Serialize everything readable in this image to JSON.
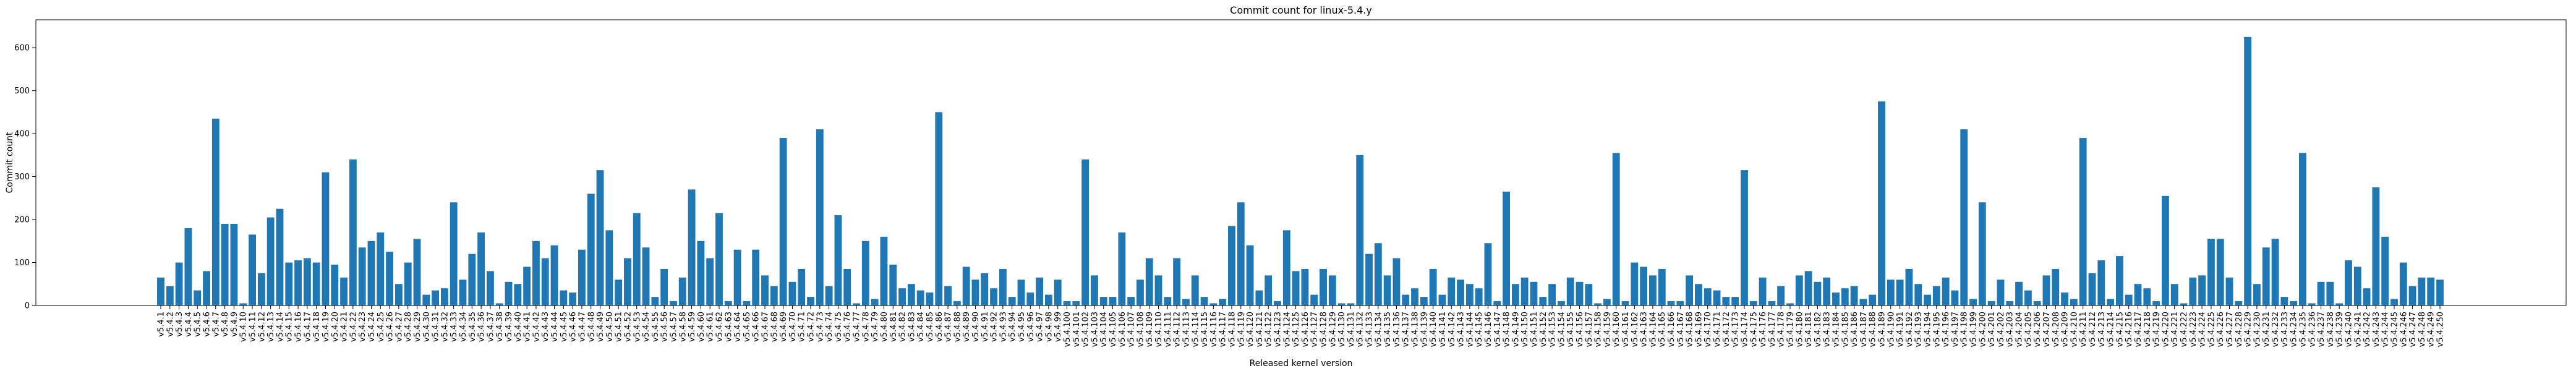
{
  "chart_data": {
    "type": "bar",
    "title": "Commit count for linux-5.4.y",
    "x_label": "Released kernel version",
    "y_label": "Commit count",
    "color": "#1f77b4",
    "categories": [
      "v5.4.1",
      "v5.4.2",
      "v5.4.3",
      "v5.4.4",
      "v5.4.5",
      "v5.4.6",
      "v5.4.7",
      "v5.4.8",
      "v5.4.9",
      "v5.4.10",
      "v5.4.11",
      "v5.4.12",
      "v5.4.13",
      "v5.4.14",
      "v5.4.15",
      "v5.4.16",
      "v5.4.17",
      "v5.4.18",
      "v5.4.19",
      "v5.4.20",
      "v5.4.21",
      "v5.4.22",
      "v5.4.23",
      "v5.4.24",
      "v5.4.25",
      "v5.4.26",
      "v5.4.27",
      "v5.4.28",
      "v5.4.29",
      "v5.4.30",
      "v5.4.31",
      "v5.4.32",
      "v5.4.33",
      "v5.4.34",
      "v5.4.35",
      "v5.4.36",
      "v5.4.37",
      "v5.4.38",
      "v5.4.39",
      "v5.4.40",
      "v5.4.41",
      "v5.4.42",
      "v5.4.43",
      "v5.4.44",
      "v5.4.45",
      "v5.4.46",
      "v5.4.47",
      "v5.4.48",
      "v5.4.49",
      "v5.4.50",
      "v5.4.51",
      "v5.4.52",
      "v5.4.53",
      "v5.4.54",
      "v5.4.55",
      "v5.4.56",
      "v5.4.57",
      "v5.4.58",
      "v5.4.59",
      "v5.4.60",
      "v5.4.61",
      "v5.4.62",
      "v5.4.63",
      "v5.4.64",
      "v5.4.65",
      "v5.4.66",
      "v5.4.67",
      "v5.4.68",
      "v5.4.69",
      "v5.4.70",
      "v5.4.71",
      "v5.4.72",
      "v5.4.73",
      "v5.4.74",
      "v5.4.75",
      "v5.4.76",
      "v5.4.77",
      "v5.4.78",
      "v5.4.79",
      "v5.4.80",
      "v5.4.81",
      "v5.4.82",
      "v5.4.83",
      "v5.4.84",
      "v5.4.85",
      "v5.4.86",
      "v5.4.87",
      "v5.4.88",
      "v5.4.89",
      "v5.4.90",
      "v5.4.91",
      "v5.4.92",
      "v5.4.93",
      "v5.4.94",
      "v5.4.95",
      "v5.4.96",
      "v5.4.97",
      "v5.4.98",
      "v5.4.99",
      "v5.4.100",
      "v5.4.101",
      "v5.4.102",
      "v5.4.103",
      "v5.4.104",
      "v5.4.105",
      "v5.4.106",
      "v5.4.107",
      "v5.4.108",
      "v5.4.109",
      "v5.4.110",
      "v5.4.111",
      "v5.4.112",
      "v5.4.113",
      "v5.4.114",
      "v5.4.115",
      "v5.4.116",
      "v5.4.117",
      "v5.4.118",
      "v5.4.119",
      "v5.4.120",
      "v5.4.121",
      "v5.4.122",
      "v5.4.123",
      "v5.4.124",
      "v5.4.125",
      "v5.4.126",
      "v5.4.127",
      "v5.4.128",
      "v5.4.129",
      "v5.4.130",
      "v5.4.131",
      "v5.4.132",
      "v5.4.133",
      "v5.4.134",
      "v5.4.135",
      "v5.4.136",
      "v5.4.137",
      "v5.4.138",
      "v5.4.139",
      "v5.4.140",
      "v5.4.141",
      "v5.4.142",
      "v5.4.143",
      "v5.4.144",
      "v5.4.145",
      "v5.4.146",
      "v5.4.147",
      "v5.4.148",
      "v5.4.149",
      "v5.4.150",
      "v5.4.151",
      "v5.4.152",
      "v5.4.153",
      "v5.4.154",
      "v5.4.155",
      "v5.4.156",
      "v5.4.157",
      "v5.4.158",
      "v5.4.159",
      "v5.4.160",
      "v5.4.161",
      "v5.4.162",
      "v5.4.163",
      "v5.4.164",
      "v5.4.165",
      "v5.4.166",
      "v5.4.167",
      "v5.4.168",
      "v5.4.169",
      "v5.4.170",
      "v5.4.171",
      "v5.4.172",
      "v5.4.173",
      "v5.4.174",
      "v5.4.175",
      "v5.4.176",
      "v5.4.177",
      "v5.4.178",
      "v5.4.179",
      "v5.4.180",
      "v5.4.181",
      "v5.4.182",
      "v5.4.183",
      "v5.4.184",
      "v5.4.185",
      "v5.4.186",
      "v5.4.187",
      "v5.4.188",
      "v5.4.189",
      "v5.4.190",
      "v5.4.191",
      "v5.4.192",
      "v5.4.193",
      "v5.4.194",
      "v5.4.195",
      "v5.4.196",
      "v5.4.197",
      "v5.4.198",
      "v5.4.199",
      "v5.4.200",
      "v5.4.201",
      "v5.4.202",
      "v5.4.203",
      "v5.4.204",
      "v5.4.205",
      "v5.4.206",
      "v5.4.207",
      "v5.4.208",
      "v5.4.209",
      "v5.4.210",
      "v5.4.211",
      "v5.4.212",
      "v5.4.213",
      "v5.4.214",
      "v5.4.215",
      "v5.4.216",
      "v5.4.217",
      "v5.4.218",
      "v5.4.219",
      "v5.4.220",
      "v5.4.221",
      "v5.4.222",
      "v5.4.223",
      "v5.4.224",
      "v5.4.225",
      "v5.4.226",
      "v5.4.227",
      "v5.4.228",
      "v5.4.229",
      "v5.4.230",
      "v5.4.231",
      "v5.4.232",
      "v5.4.233",
      "v5.4.234",
      "v5.4.235",
      "v5.4.236",
      "v5.4.237",
      "v5.4.238",
      "v5.4.239",
      "v5.4.240",
      "v5.4.241",
      "v5.4.242",
      "v5.4.243",
      "v5.4.244",
      "v5.4.245",
      "v5.4.246",
      "v5.4.247",
      "v5.4.248",
      "v5.4.249",
      "v5.4.250"
    ],
    "values": [
      65,
      45,
      100,
      180,
      35,
      80,
      435,
      190,
      190,
      5,
      165,
      75,
      205,
      225,
      100,
      105,
      110,
      100,
      310,
      95,
      65,
      340,
      135,
      150,
      170,
      125,
      50,
      100,
      155,
      25,
      35,
      40,
      240,
      60,
      120,
      170,
      80,
      5,
      55,
      50,
      90,
      150,
      110,
      140,
      35,
      30,
      130,
      260,
      315,
      175,
      60,
      110,
      215,
      135,
      20,
      85,
      10,
      65,
      270,
      150,
      110,
      215,
      10,
      130,
      10,
      130,
      70,
      45,
      390,
      55,
      85,
      20,
      410,
      45,
      210,
      85,
      5,
      150,
      15,
      160,
      95,
      40,
      50,
      35,
      30,
      450,
      45,
      10,
      90,
      60,
      75,
      40,
      85,
      20,
      60,
      30,
      65,
      25,
      60,
      10,
      10,
      340,
      70,
      20,
      20,
      170,
      20,
      60,
      110,
      70,
      20,
      110,
      15,
      70,
      20,
      5,
      15,
      185,
      240,
      140,
      35,
      70,
      10,
      175,
      80,
      85,
      25,
      85,
      70,
      5,
      5,
      350,
      120,
      145,
      70,
      110,
      25,
      40,
      20,
      85,
      25,
      65,
      60,
      50,
      40,
      145,
      10,
      265,
      50,
      65,
      55,
      20,
      50,
      10,
      65,
      55,
      50,
      5,
      15,
      355,
      10,
      100,
      90,
      70,
      85,
      10,
      10,
      70,
      50,
      40,
      35,
      20,
      20,
      315,
      10,
      65,
      10,
      45,
      5,
      70,
      80,
      55,
      65,
      30,
      40,
      45,
      15,
      25,
      475,
      60,
      60,
      85,
      50,
      25,
      45,
      65,
      35,
      410,
      15,
      240,
      10,
      60,
      10,
      55,
      35,
      10,
      70,
      85,
      30,
      15,
      390,
      75,
      105,
      15,
      115,
      25,
      50,
      40,
      10,
      255,
      50,
      5,
      65,
      70,
      155,
      155,
      65,
      10,
      625,
      50,
      135,
      155,
      20,
      10,
      355,
      5,
      55,
      55,
      5,
      105,
      90,
      40,
      275,
      160,
      15,
      100,
      45,
      65,
      65,
      60
    ],
    "ylim": [
      0,
      665
    ],
    "yticks": [
      0,
      100,
      200,
      300,
      400,
      500,
      600
    ]
  }
}
